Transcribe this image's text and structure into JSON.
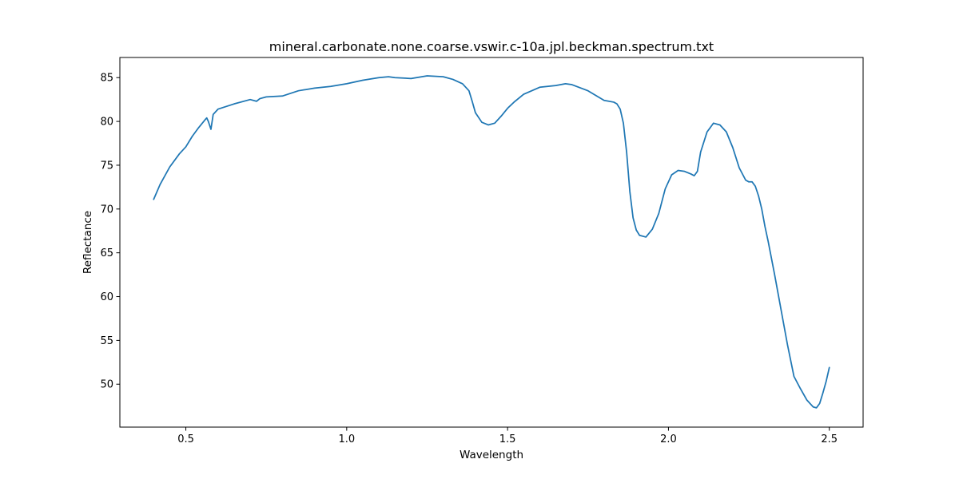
{
  "chart_data": {
    "type": "line",
    "title": "mineral.carbonate.none.coarse.vswir.c-10a.jpl.beckman.spectrum.txt",
    "xlabel": "Wavelength",
    "ylabel": "Reflectance",
    "xlim": [
      0.295,
      2.605
    ],
    "ylim": [
      45.1,
      87.3
    ],
    "xticks": [
      0.5,
      1.0,
      1.5,
      2.0,
      2.5
    ],
    "xtick_labels": [
      "0.5",
      "1.0",
      "1.5",
      "2.0",
      "2.5"
    ],
    "yticks": [
      50,
      55,
      60,
      65,
      70,
      75,
      80,
      85
    ],
    "ytick_labels": [
      "50",
      "55",
      "60",
      "65",
      "70",
      "75",
      "80",
      "85"
    ],
    "grid": false,
    "series": [
      {
        "color": "#1f77b4",
        "x": [
          0.4,
          0.42,
          0.45,
          0.48,
          0.5,
          0.52,
          0.54,
          0.56,
          0.565,
          0.57,
          0.578,
          0.585,
          0.6,
          0.65,
          0.7,
          0.72,
          0.73,
          0.75,
          0.8,
          0.85,
          0.9,
          0.95,
          1.0,
          1.05,
          1.1,
          1.13,
          1.15,
          1.2,
          1.25,
          1.3,
          1.33,
          1.36,
          1.38,
          1.39,
          1.4,
          1.42,
          1.44,
          1.46,
          1.48,
          1.5,
          1.52,
          1.55,
          1.6,
          1.65,
          1.68,
          1.7,
          1.75,
          1.8,
          1.83,
          1.84,
          1.85,
          1.86,
          1.87,
          1.88,
          1.89,
          1.9,
          1.91,
          1.93,
          1.95,
          1.97,
          1.99,
          2.01,
          2.03,
          2.05,
          2.07,
          2.08,
          2.09,
          2.1,
          2.12,
          2.14,
          2.16,
          2.18,
          2.2,
          2.22,
          2.24,
          2.25,
          2.26,
          2.27,
          2.28,
          2.29,
          2.3,
          2.31,
          2.33,
          2.35,
          2.37,
          2.39,
          2.41,
          2.43,
          2.45,
          2.46,
          2.47,
          2.48,
          2.49,
          2.5
        ],
        "y": [
          71.1,
          72.8,
          74.8,
          76.3,
          77.1,
          78.3,
          79.3,
          80.2,
          80.4,
          80.0,
          79.1,
          80.8,
          81.4,
          82.0,
          82.5,
          82.3,
          82.6,
          82.8,
          82.9,
          83.5,
          83.8,
          84.0,
          84.3,
          84.7,
          85.0,
          85.1,
          85.0,
          84.9,
          85.2,
          85.1,
          84.8,
          84.3,
          83.5,
          82.3,
          81.0,
          79.9,
          79.6,
          79.8,
          80.6,
          81.5,
          82.2,
          83.1,
          83.9,
          84.1,
          84.3,
          84.2,
          83.5,
          82.4,
          82.2,
          82.0,
          81.4,
          79.8,
          76.5,
          72.0,
          69.0,
          67.6,
          67.0,
          66.8,
          67.7,
          69.5,
          72.3,
          73.9,
          74.4,
          74.3,
          74.0,
          73.8,
          74.3,
          76.5,
          78.8,
          79.8,
          79.6,
          78.8,
          77.0,
          74.7,
          73.3,
          73.1,
          73.1,
          72.6,
          71.5,
          70.0,
          68.0,
          66.3,
          62.5,
          58.5,
          54.5,
          50.9,
          49.5,
          48.2,
          47.4,
          47.3,
          47.8,
          49.0,
          50.3,
          51.9
        ]
      }
    ]
  }
}
